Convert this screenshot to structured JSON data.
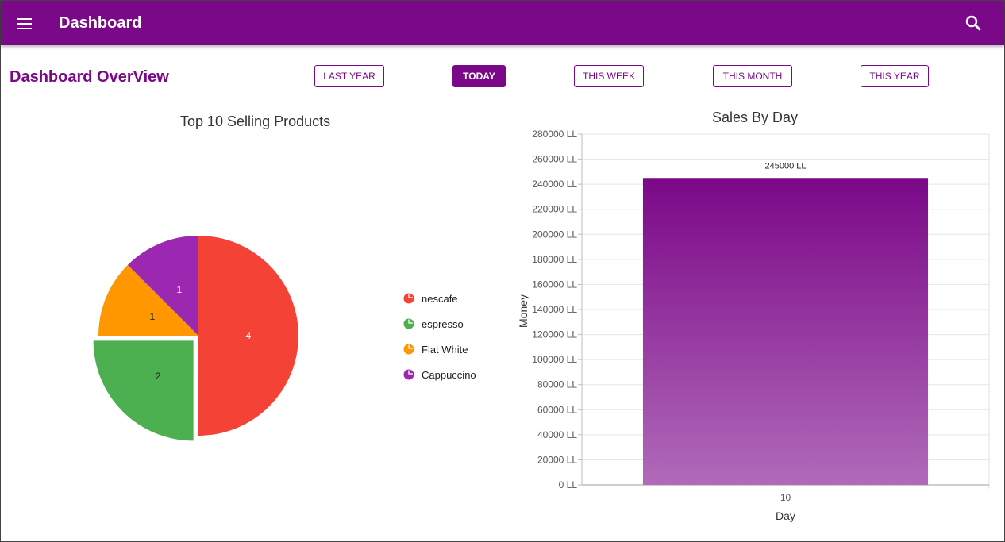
{
  "header": {
    "title": "Dashboard",
    "menu_icon": "hamburger-menu-icon",
    "search_icon": "search-icon"
  },
  "page": {
    "title": "Dashboard OverView"
  },
  "range_buttons": [
    {
      "label": "LAST YEAR",
      "active": false
    },
    {
      "label": "TODAY",
      "active": true
    },
    {
      "label": "THIS WEEK",
      "active": false
    },
    {
      "label": "THIS MONTH",
      "active": false
    },
    {
      "label": "THIS YEAR",
      "active": false
    }
  ],
  "colors": {
    "primary": "#7b0888",
    "nescafe": "#f44336",
    "espresso": "#4caf50",
    "flat_white": "#ff9800",
    "cappuccino": "#9c27b0"
  },
  "chart_data": [
    {
      "type": "pie",
      "title": "Top 10 Selling Products",
      "legend_position": "right",
      "slices": [
        {
          "label": "nescafe",
          "value": 4,
          "color": "#f44336",
          "exploded": false
        },
        {
          "label": "espresso",
          "value": 2,
          "color": "#4caf50",
          "exploded": true
        },
        {
          "label": "Flat White",
          "value": 1,
          "color": "#ff9800",
          "exploded": false
        },
        {
          "label": "Cappuccino",
          "value": 1,
          "color": "#9c27b0",
          "exploded": false
        }
      ]
    },
    {
      "type": "bar",
      "title": "Sales By Day",
      "xlabel": "Day",
      "ylabel": "Money",
      "categories": [
        "10"
      ],
      "values": [
        245000
      ],
      "data_labels": [
        "245000 LL"
      ],
      "ylim": [
        0,
        280000
      ],
      "ytick_step": 20000,
      "ytick_suffix": " LL",
      "grid": true
    }
  ]
}
